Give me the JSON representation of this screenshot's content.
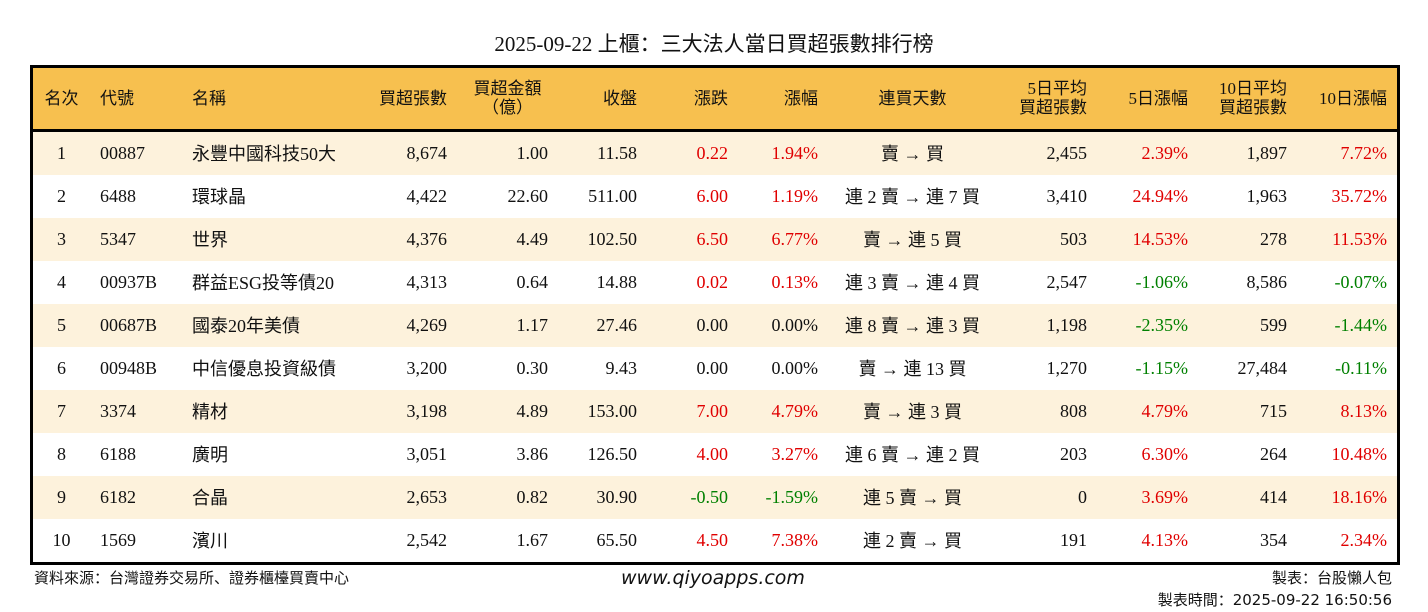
{
  "title": "2025-09-22 上櫃：三大法人當日買超張數排行榜",
  "colors": {
    "header_bg": "#f7c04f",
    "row_alt_bg": "#fdf2dc",
    "up": "#e00000",
    "down": "#008000",
    "flat": "#111111"
  },
  "headers": {
    "rank": "名次",
    "code": "代號",
    "name": "名稱",
    "buy_shares": "買超張數",
    "amount_1": "買超金額",
    "amount_2": "（億）",
    "close": "收盤",
    "change": "漲跌",
    "pct": "漲幅",
    "streak": "連買天數",
    "avg5_1": "5日平均",
    "avg5_2": "買超張數",
    "pct5": "5日漲幅",
    "avg10_1": "10日平均",
    "avg10_2": "買超張數",
    "pct10": "10日漲幅"
  },
  "rows": [
    {
      "rank": "1",
      "code": "00887",
      "name": "永豐中國科技50大",
      "buy": "8,674",
      "amount": "1.00",
      "close": "11.58",
      "change": "0.22",
      "pct": "1.94%",
      "streak": "賣 → 買",
      "avg5": "2,455",
      "pct5": "2.39%",
      "avg10": "1,897",
      "pct10": "7.72%"
    },
    {
      "rank": "2",
      "code": "6488",
      "name": "環球晶",
      "buy": "4,422",
      "amount": "22.60",
      "close": "511.00",
      "change": "6.00",
      "pct": "1.19%",
      "streak": "連 2 賣 → 連 7 買",
      "avg5": "3,410",
      "pct5": "24.94%",
      "avg10": "1,963",
      "pct10": "35.72%"
    },
    {
      "rank": "3",
      "code": "5347",
      "name": "世界",
      "buy": "4,376",
      "amount": "4.49",
      "close": "102.50",
      "change": "6.50",
      "pct": "6.77%",
      "streak": "賣 → 連 5 買",
      "avg5": "503",
      "pct5": "14.53%",
      "avg10": "278",
      "pct10": "11.53%"
    },
    {
      "rank": "4",
      "code": "00937B",
      "name": "群益ESG投等債20",
      "buy": "4,313",
      "amount": "0.64",
      "close": "14.88",
      "change": "0.02",
      "pct": "0.13%",
      "streak": "連 3 賣 → 連 4 買",
      "avg5": "2,547",
      "pct5": "-1.06%",
      "avg10": "8,586",
      "pct10": "-0.07%"
    },
    {
      "rank": "5",
      "code": "00687B",
      "name": "國泰20年美債",
      "buy": "4,269",
      "amount": "1.17",
      "close": "27.46",
      "change": "0.00",
      "pct": "0.00%",
      "streak": "連 8 賣 → 連 3 買",
      "avg5": "1,198",
      "pct5": "-2.35%",
      "avg10": "599",
      "pct10": "-1.44%"
    },
    {
      "rank": "6",
      "code": "00948B",
      "name": "中信優息投資級債",
      "buy": "3,200",
      "amount": "0.30",
      "close": "9.43",
      "change": "0.00",
      "pct": "0.00%",
      "streak": "賣 → 連 13 買",
      "avg5": "1,270",
      "pct5": "-1.15%",
      "avg10": "27,484",
      "pct10": "-0.11%"
    },
    {
      "rank": "7",
      "code": "3374",
      "name": "精材",
      "buy": "3,198",
      "amount": "4.89",
      "close": "153.00",
      "change": "7.00",
      "pct": "4.79%",
      "streak": "賣 → 連 3 買",
      "avg5": "808",
      "pct5": "4.79%",
      "avg10": "715",
      "pct10": "8.13%"
    },
    {
      "rank": "8",
      "code": "6188",
      "name": "廣明",
      "buy": "3,051",
      "amount": "3.86",
      "close": "126.50",
      "change": "4.00",
      "pct": "3.27%",
      "streak": "連 6 賣 → 連 2 買",
      "avg5": "203",
      "pct5": "6.30%",
      "avg10": "264",
      "pct10": "10.48%"
    },
    {
      "rank": "9",
      "code": "6182",
      "name": "合晶",
      "buy": "2,653",
      "amount": "0.82",
      "close": "30.90",
      "change": "-0.50",
      "pct": "-1.59%",
      "streak": "連 5 賣 → 買",
      "avg5": "0",
      "pct5": "3.69%",
      "avg10": "414",
      "pct10": "18.16%"
    },
    {
      "rank": "10",
      "code": "1569",
      "name": "濱川",
      "buy": "2,542",
      "amount": "1.67",
      "close": "65.50",
      "change": "4.50",
      "pct": "7.38%",
      "streak": "連 2 賣 → 買",
      "avg5": "191",
      "pct5": "4.13%",
      "avg10": "354",
      "pct10": "2.34%"
    }
  ],
  "footer": {
    "source": "資料來源：台灣證券交易所、證券櫃檯買賣中心",
    "site": "www.qiyoapps.com",
    "author": "製表：台股懶人包",
    "time": "製表時間：2025-09-22 16:50:56"
  }
}
